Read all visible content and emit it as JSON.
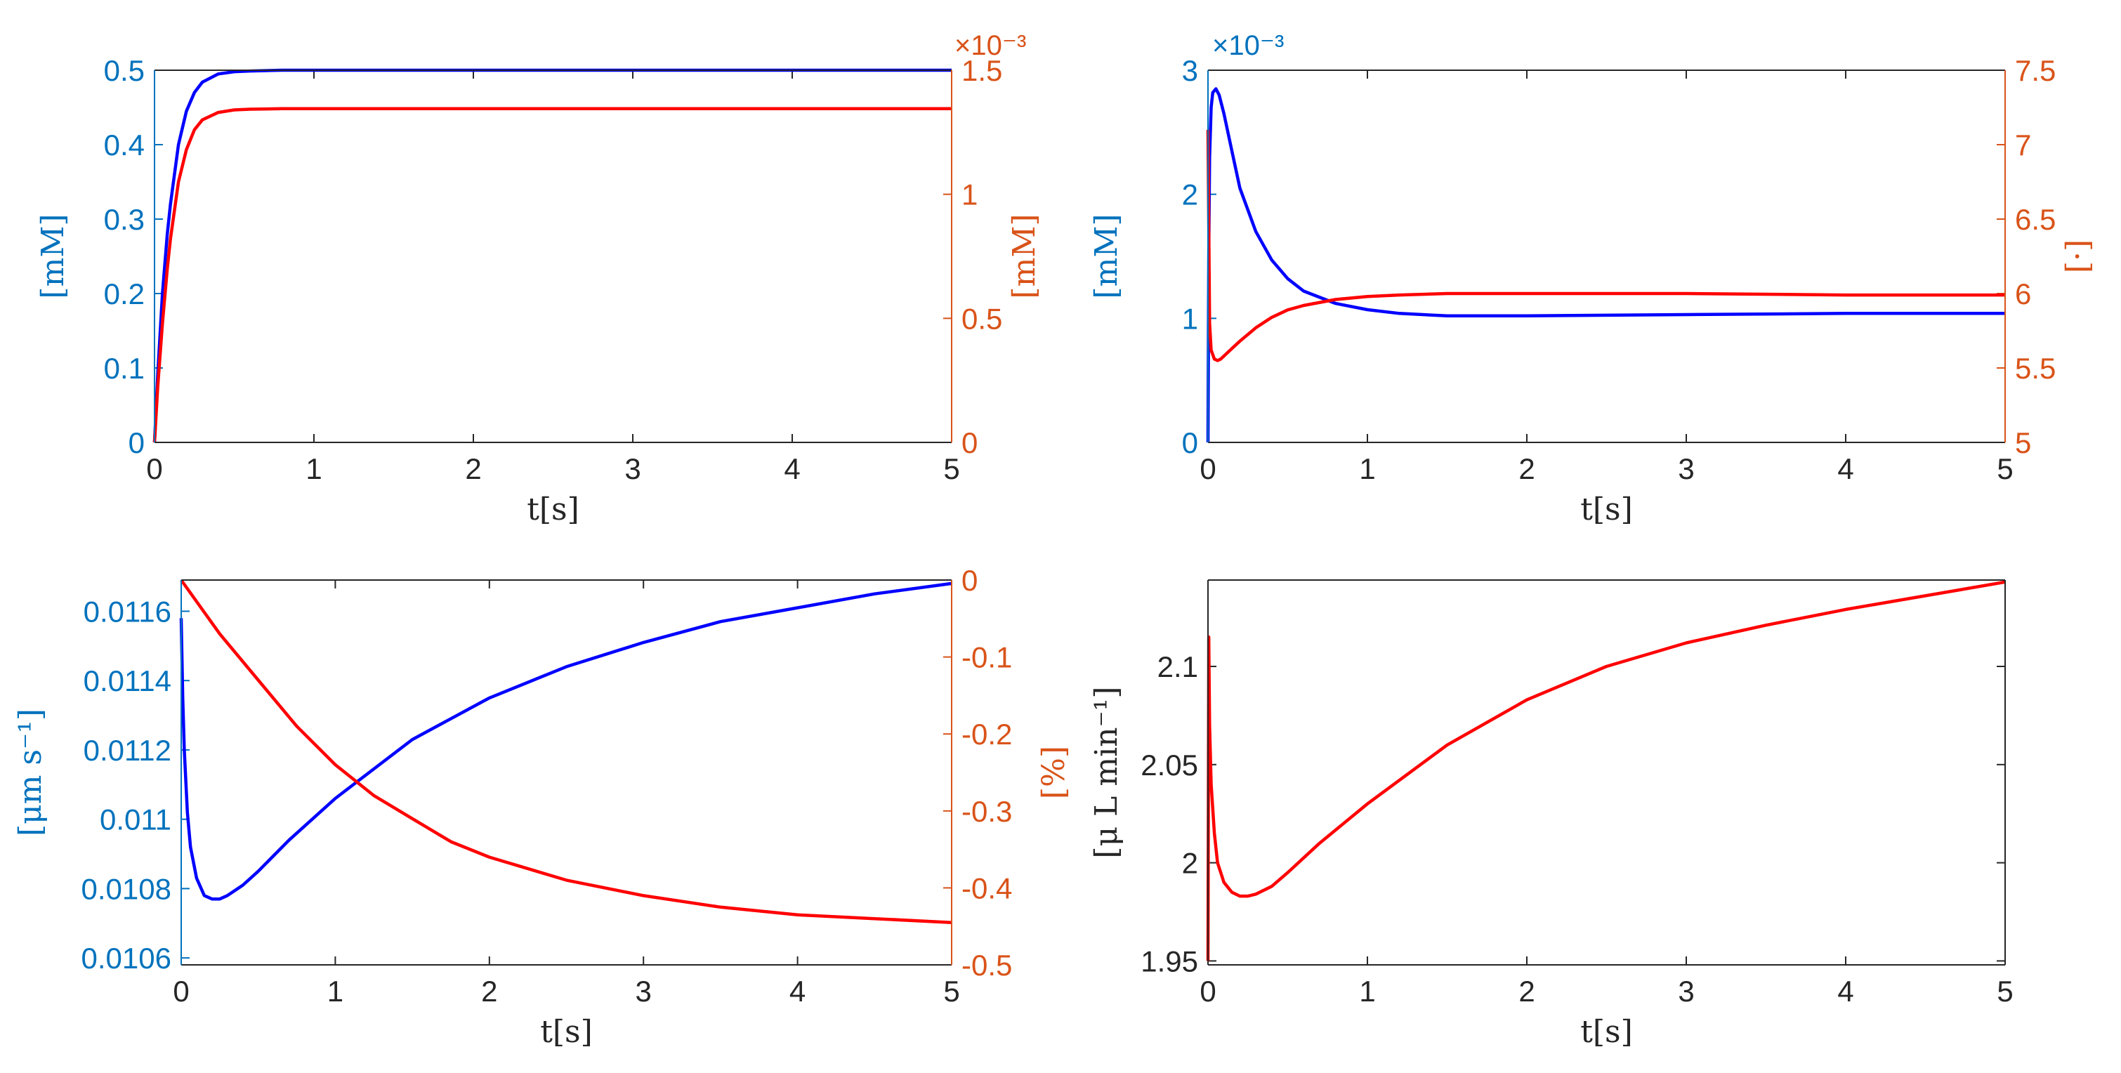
{
  "colors": {
    "left_axis": "#0072BD",
    "right_axis": "#D95319",
    "blue_line": "#0000FF",
    "red_line": "#FF0000",
    "black_axis": "#262626"
  },
  "chart_data": [
    {
      "id": "panel-1",
      "type": "line",
      "title": "",
      "xlabel": "t[s]",
      "xlim": [
        0,
        5
      ],
      "xticks": [
        "0",
        "1",
        "2",
        "3",
        "4",
        "5"
      ],
      "left_axis": {
        "label": "[mM]",
        "ylim": [
          0,
          0.5
        ],
        "ticks": [
          "0",
          "0.1",
          "0.2",
          "0.3",
          "0.4",
          "0.5"
        ],
        "exponent": ""
      },
      "right_axis": {
        "label": "[mM]",
        "ylim": [
          0,
          1.5
        ],
        "ticks": [
          "0",
          "0.5",
          "1",
          "1.5"
        ],
        "exponent": "×10⁻³"
      },
      "series": [
        {
          "axis": "left",
          "color": "blue",
          "x": [
            0,
            0.02,
            0.05,
            0.08,
            0.1,
            0.15,
            0.2,
            0.25,
            0.3,
            0.4,
            0.5,
            0.6,
            0.8,
            1,
            2,
            3,
            4,
            5
          ],
          "y": [
            0,
            0.09,
            0.2,
            0.28,
            0.32,
            0.4,
            0.445,
            0.47,
            0.484,
            0.495,
            0.498,
            0.499,
            0.5,
            0.5,
            0.5,
            0.5,
            0.5,
            0.5
          ]
        },
        {
          "axis": "right",
          "color": "red",
          "x": [
            0,
            0.02,
            0.05,
            0.08,
            0.1,
            0.15,
            0.2,
            0.25,
            0.3,
            0.4,
            0.5,
            0.6,
            0.8,
            1,
            2,
            3,
            4,
            5
          ],
          "y": [
            0,
            0.22,
            0.48,
            0.7,
            0.82,
            1.05,
            1.18,
            1.26,
            1.3,
            1.33,
            1.34,
            1.343,
            1.345,
            1.345,
            1.345,
            1.345,
            1.345,
            1.345
          ]
        }
      ]
    },
    {
      "id": "panel-2",
      "type": "line",
      "title": "",
      "xlabel": "t[s]",
      "xlim": [
        0,
        5
      ],
      "xticks": [
        "0",
        "1",
        "2",
        "3",
        "4",
        "5"
      ],
      "left_axis": {
        "label": "[mM]",
        "ylim": [
          0,
          3
        ],
        "ticks": [
          "0",
          "1",
          "2",
          "3"
        ],
        "exponent": "×10⁻³"
      },
      "right_axis": {
        "label": "[·]",
        "ylim": [
          5,
          7.5
        ],
        "ticks": [
          "5",
          "5.5",
          "6",
          "6.5",
          "7",
          "7.5"
        ],
        "exponent": ""
      },
      "series": [
        {
          "axis": "left",
          "color": "blue",
          "x": [
            0,
            0.005,
            0.01,
            0.02,
            0.03,
            0.05,
            0.07,
            0.1,
            0.15,
            0.2,
            0.3,
            0.4,
            0.5,
            0.6,
            0.8,
            1,
            1.2,
            1.5,
            2,
            3,
            4,
            5
          ],
          "y": [
            0,
            1.5,
            2.3,
            2.7,
            2.82,
            2.85,
            2.8,
            2.65,
            2.35,
            2.05,
            1.7,
            1.47,
            1.32,
            1.22,
            1.12,
            1.07,
            1.04,
            1.02,
            1.02,
            1.03,
            1.04,
            1.04
          ]
        },
        {
          "axis": "right",
          "color": "red",
          "x": [
            0,
            0.01,
            0.02,
            0.04,
            0.06,
            0.08,
            0.1,
            0.15,
            0.2,
            0.3,
            0.4,
            0.5,
            0.6,
            0.8,
            1,
            1.2,
            1.5,
            2,
            3,
            4,
            5
          ],
          "y": [
            7.1,
            5.8,
            5.62,
            5.56,
            5.55,
            5.56,
            5.58,
            5.63,
            5.68,
            5.77,
            5.84,
            5.89,
            5.92,
            5.96,
            5.98,
            5.99,
            6.0,
            6.0,
            6.0,
            5.99,
            5.99
          ]
        }
      ]
    },
    {
      "id": "panel-3",
      "type": "line",
      "title": "",
      "xlabel": "t[s]",
      "xlim": [
        0,
        5
      ],
      "xticks": [
        "0",
        "1",
        "2",
        "3",
        "4",
        "5"
      ],
      "left_axis": {
        "label": "[μm s⁻¹]",
        "ylim": [
          0.01058,
          0.01169
        ],
        "ticks": [
          "0.0106",
          "0.0108",
          "0.011",
          "0.0112",
          "0.0114",
          "0.0116"
        ],
        "exponent": ""
      },
      "right_axis": {
        "label": "[%]",
        "ylim": [
          -0.5,
          0
        ],
        "ticks": [
          "-0.5",
          "-0.4",
          "-0.3",
          "-0.2",
          "-0.1",
          "0"
        ],
        "exponent": ""
      },
      "series": [
        {
          "axis": "left",
          "color": "blue",
          "x": [
            0,
            0.01,
            0.02,
            0.04,
            0.06,
            0.1,
            0.15,
            0.2,
            0.25,
            0.3,
            0.4,
            0.5,
            0.7,
            1,
            1.5,
            2,
            2.5,
            3,
            3.5,
            4,
            4.5,
            5
          ],
          "y": [
            0.01158,
            0.01135,
            0.0112,
            0.01102,
            0.01092,
            0.01083,
            0.01078,
            0.01077,
            0.01077,
            0.01078,
            0.01081,
            0.01085,
            0.01094,
            0.01106,
            0.01123,
            0.01135,
            0.01144,
            0.01151,
            0.01157,
            0.01161,
            0.01165,
            0.01168
          ]
        },
        {
          "axis": "right",
          "color": "red",
          "x": [
            0,
            0.25,
            0.5,
            0.75,
            1,
            1.25,
            1.5,
            1.75,
            2,
            2.5,
            3,
            3.5,
            4,
            4.5,
            5
          ],
          "y": [
            0,
            -0.07,
            -0.13,
            -0.19,
            -0.24,
            -0.28,
            -0.31,
            -0.34,
            -0.36,
            -0.39,
            -0.41,
            -0.425,
            -0.435,
            -0.44,
            -0.445
          ]
        }
      ]
    },
    {
      "id": "panel-4",
      "type": "line",
      "title": "",
      "xlabel": "t[s]",
      "xlim": [
        0,
        5
      ],
      "xticks": [
        "0",
        "1",
        "2",
        "3",
        "4",
        "5"
      ],
      "left_axis": {
        "label": "[μ L min⁻¹]",
        "ylim": [
          1.948,
          2.144
        ],
        "ticks": [
          "1.95",
          "2",
          "2.05",
          "2.1"
        ],
        "exponent": ""
      },
      "series": [
        {
          "axis": "left",
          "color": "red",
          "x": [
            0,
            0.005,
            0.01,
            0.02,
            0.04,
            0.06,
            0.1,
            0.15,
            0.2,
            0.25,
            0.3,
            0.4,
            0.5,
            0.7,
            1,
            1.5,
            2,
            2.5,
            3,
            3.5,
            4,
            4.5,
            5
          ],
          "y": [
            1.95,
            2.115,
            2.07,
            2.04,
            2.015,
            2.0,
            1.99,
            1.985,
            1.983,
            1.983,
            1.984,
            1.988,
            1.995,
            2.01,
            2.03,
            2.06,
            2.083,
            2.1,
            2.112,
            2.121,
            2.129,
            2.136,
            2.143
          ]
        }
      ]
    }
  ]
}
